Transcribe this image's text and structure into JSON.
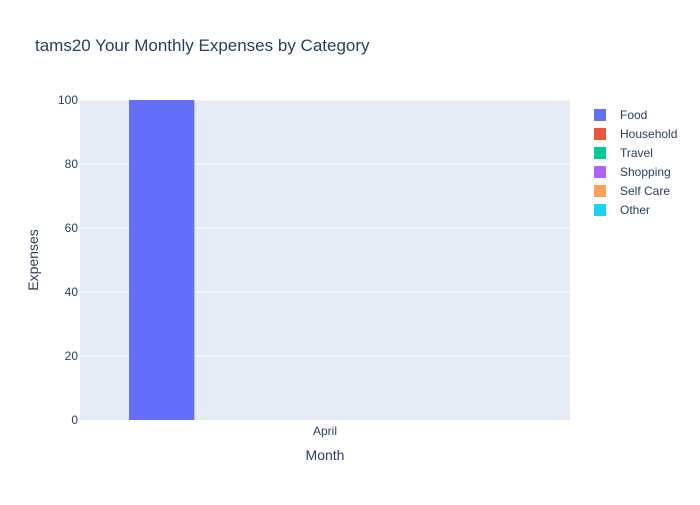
{
  "chart_data": {
    "type": "bar",
    "title": "tams20 Your Monthly Expenses by Category",
    "xlabel": "Month",
    "ylabel": "Expenses",
    "categories": [
      "April"
    ],
    "ylim": [
      0,
      100
    ],
    "yticks": [
      0,
      20,
      40,
      60,
      80,
      100
    ],
    "grid": true,
    "legend_position": "right",
    "plot_background": "#e5ecf6",
    "series": [
      {
        "name": "Food",
        "color": "#636efa",
        "values": [
          100
        ]
      },
      {
        "name": "Household",
        "color": "#ef553b",
        "values": [
          0
        ]
      },
      {
        "name": "Travel",
        "color": "#00cc96",
        "values": [
          0
        ]
      },
      {
        "name": "Shopping",
        "color": "#ab63fa",
        "values": [
          0
        ]
      },
      {
        "name": "Self Care",
        "color": "#ffa15a",
        "values": [
          0
        ]
      },
      {
        "name": "Other",
        "color": "#19d3f3",
        "values": [
          0
        ]
      }
    ]
  }
}
